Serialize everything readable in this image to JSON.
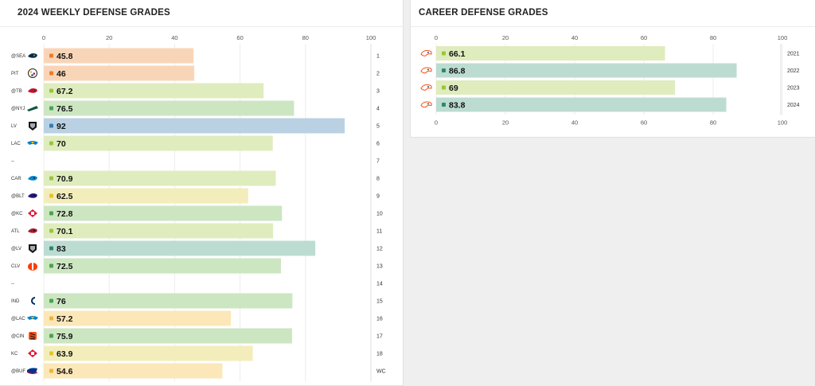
{
  "weekly": {
    "title": "2024 WEEKLY DEFENSE GRADES"
  },
  "career": {
    "title": "CAREER DEFENSE GRADES"
  },
  "colors": {
    "orange_bar": "#f9d5b8",
    "orange_dot": "#ee7a2b",
    "yellow_bar": "#f3edbb",
    "yellow_dot": "#e2c52a",
    "ltyellow_bar": "#fbe7b8",
    "ltyellow_dot": "#f0b43a",
    "lime_bar": "#dfecbe",
    "lime_dot": "#9cc43a",
    "green_bar": "#cce6c2",
    "green_dot": "#4aa34f",
    "teal_bar": "#bcdcd2",
    "teal_dot": "#2d8a6a",
    "blue_bar": "#b9d1e2",
    "blue_dot": "#3a7bb0",
    "grid": "#ececec",
    "axis": "#dddddd"
  },
  "chart_data": [
    {
      "type": "bar",
      "orientation": "horizontal",
      "title": "2024 WEEKLY DEFENSE GRADES",
      "xlim": [
        0,
        100
      ],
      "x_ticks": [
        "0",
        "20",
        "40",
        "60",
        "80",
        "100"
      ],
      "grid": true,
      "rows": [
        {
          "opponent": "@SEA",
          "icon": "seahawks-logo-icon",
          "value": 45.8,
          "label": "45.8",
          "week": "1",
          "color": "orange"
        },
        {
          "opponent": "PIT",
          "icon": "steelers-logo-icon",
          "value": 46,
          "label": "46",
          "week": "2",
          "color": "orange"
        },
        {
          "opponent": "@TB",
          "icon": "buccaneers-logo-icon",
          "value": 67.2,
          "label": "67.2",
          "week": "3",
          "color": "lime"
        },
        {
          "opponent": "@NYJ",
          "icon": "jets-logo-icon",
          "value": 76.5,
          "label": "76.5",
          "week": "4",
          "color": "green"
        },
        {
          "opponent": "LV",
          "icon": "raiders-logo-icon",
          "value": 92,
          "label": "92",
          "week": "5",
          "color": "blue"
        },
        {
          "opponent": "LAC",
          "icon": "chargers-logo-icon",
          "value": 70,
          "label": "70",
          "week": "6",
          "color": "lime"
        },
        {
          "opponent": "--",
          "icon": null,
          "value": null,
          "label": "",
          "week": "7",
          "color": null
        },
        {
          "opponent": "CAR",
          "icon": "panthers-logo-icon",
          "value": 70.9,
          "label": "70.9",
          "week": "8",
          "color": "lime"
        },
        {
          "opponent": "@BLT",
          "icon": "ravens-logo-icon",
          "value": 62.5,
          "label": "62.5",
          "week": "9",
          "color": "yellow"
        },
        {
          "opponent": "@KC",
          "icon": "chiefs-logo-icon",
          "value": 72.8,
          "label": "72.8",
          "week": "10",
          "color": "green"
        },
        {
          "opponent": "ATL",
          "icon": "falcons-logo-icon",
          "value": 70.1,
          "label": "70.1",
          "week": "11",
          "color": "lime"
        },
        {
          "opponent": "@LV",
          "icon": "raiders-logo-icon",
          "value": 83,
          "label": "83",
          "week": "12",
          "color": "teal"
        },
        {
          "opponent": "CLV",
          "icon": "browns-logo-icon",
          "value": 72.5,
          "label": "72.5",
          "week": "13",
          "color": "green"
        },
        {
          "opponent": "--",
          "icon": null,
          "value": null,
          "label": "",
          "week": "14",
          "color": null
        },
        {
          "opponent": "IND",
          "icon": "colts-logo-icon",
          "value": 76,
          "label": "76",
          "week": "15",
          "color": "green"
        },
        {
          "opponent": "@LAC",
          "icon": "chargers-logo-icon",
          "value": 57.2,
          "label": "57.2",
          "week": "16",
          "color": "ltyellow"
        },
        {
          "opponent": "@CIN",
          "icon": "bengals-logo-icon",
          "value": 75.9,
          "label": "75.9",
          "week": "17",
          "color": "green"
        },
        {
          "opponent": "KC",
          "icon": "chiefs-logo-icon",
          "value": 63.9,
          "label": "63.9",
          "week": "18",
          "color": "yellow"
        },
        {
          "opponent": "@BUF",
          "icon": "bills-logo-icon",
          "value": 54.6,
          "label": "54.6",
          "week": "WC",
          "color": "ltyellow"
        }
      ]
    },
    {
      "type": "bar",
      "orientation": "horizontal",
      "title": "CAREER DEFENSE GRADES",
      "xlim": [
        0,
        100
      ],
      "x_ticks": [
        "0",
        "20",
        "40",
        "60",
        "80",
        "100"
      ],
      "grid": true,
      "rows": [
        {
          "icon": "broncos-logo-icon",
          "value": 66.1,
          "label": "66.1",
          "year": "2021",
          "color": "lime"
        },
        {
          "icon": "broncos-logo-icon",
          "value": 86.8,
          "label": "86.8",
          "year": "2022",
          "color": "teal"
        },
        {
          "icon": "broncos-logo-icon",
          "value": 69,
          "label": "69",
          "year": "2023",
          "color": "lime"
        },
        {
          "icon": "broncos-logo-icon",
          "value": 83.8,
          "label": "83.8",
          "year": "2024",
          "color": "teal"
        }
      ]
    }
  ]
}
